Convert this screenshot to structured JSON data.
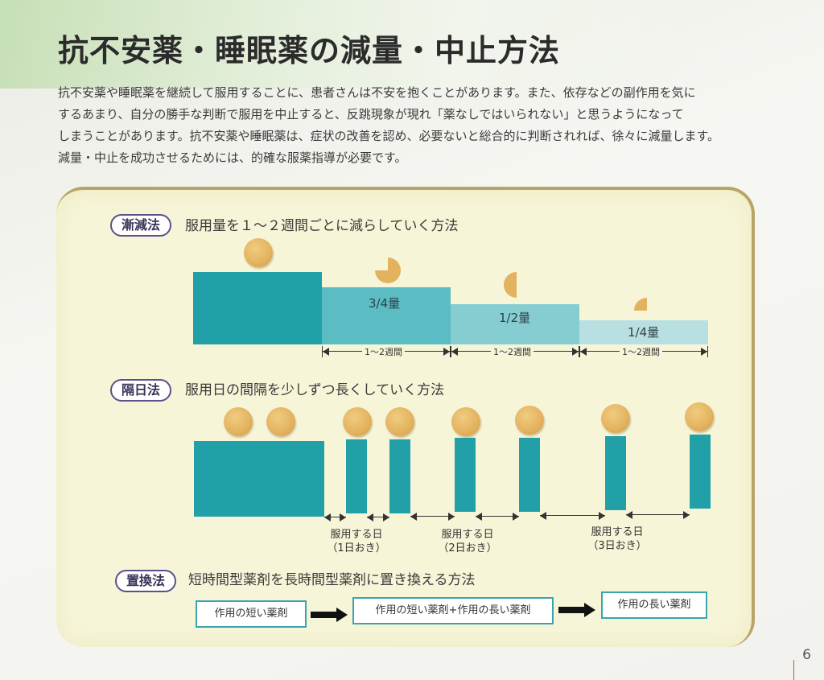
{
  "title": "抗不安薬・睡眠薬の減量・中止方法",
  "intro": [
    "抗不安薬や睡眠薬を継続して服用することに、患者さんは不安を抱くことがあります。また、依存などの副作用を気に",
    "するあまり、自分の勝手な判断で服用を中止すると、反跳現象が現れ「薬なしではいられない」と思うようになって",
    "しまうことがあります。抗不安薬や睡眠薬は、症状の改善を認め、必要ないと総合的に判断されれば、徐々に減量します。",
    "減量・中止を成功させるためには、的確な服薬指導が必要です。"
  ],
  "tapering": {
    "label": "漸減法",
    "description": "服用量を１～２週間ごとに減らしていく方法",
    "steps": [
      {
        "label": "",
        "dose_fraction": 1.0
      },
      {
        "label": "3/4量",
        "dose_fraction": 0.75
      },
      {
        "label": "1/2量",
        "dose_fraction": 0.5
      },
      {
        "label": "1/4量",
        "dose_fraction": 0.25
      }
    ],
    "interval_label": "1～2週間"
  },
  "alternate": {
    "label": "隔日法",
    "description": "服用日の間隔を少しずつ長くしていく方法",
    "notes": [
      {
        "line1": "服用する日",
        "line2": "（1日おき）"
      },
      {
        "line1": "服用する日",
        "line2": "（2日おき）"
      },
      {
        "line1": "服用する日",
        "line2": "（3日おき）"
      }
    ]
  },
  "replacement": {
    "label": "置換法",
    "description": "短時間型薬剤を長時間型薬剤に置き換える方法",
    "boxes": [
      "作用の短い薬剤",
      "作用の短い薬剤+作用の長い薬剤",
      "作用の長い薬剤"
    ]
  },
  "page_number": "6",
  "colors": {
    "teal": "#21a0a8",
    "pill": "#e3b25e",
    "panel": "#f7f5d8",
    "label_border": "#5d4f8a"
  }
}
